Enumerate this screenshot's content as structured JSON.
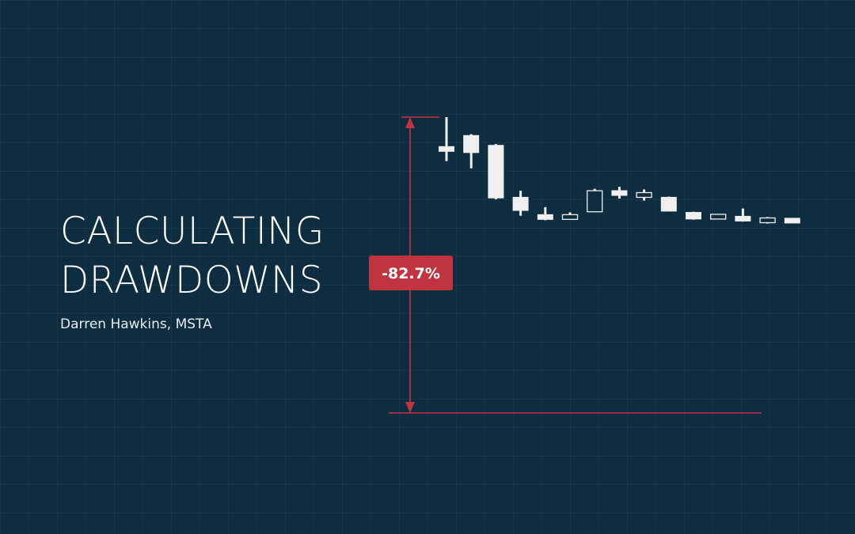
{
  "title": {
    "line1": "CALCULATING",
    "line2": "DRAWDOWNS"
  },
  "author": "Darren Hawkins, MSTA",
  "colors": {
    "background": "#0e2d40",
    "grid": "#1d3d50",
    "candle_fill": "#efefef",
    "candle_outline": "#efefef",
    "drawdown": "#c0343f",
    "badge_text": "#ffffff"
  },
  "chart_data": {
    "type": "candlestick",
    "annotations": [
      {
        "type": "drawdown",
        "label": "-82.7%",
        "from_candle": 0,
        "to_level": 25
      }
    ],
    "candles": [
      {
        "open": 427,
        "high": 475,
        "low": 408,
        "close": 426
      },
      {
        "open": 447,
        "high": 449,
        "low": 397,
        "close": 421
      },
      {
        "open": 432,
        "high": 434,
        "low": 350,
        "close": 352
      },
      {
        "open": 353,
        "high": 363,
        "low": 325,
        "close": 333
      },
      {
        "open": 325,
        "high": 338,
        "low": 318,
        "close": 321
      },
      {
        "open": 321,
        "high": 330,
        "low": 321,
        "close": 325
      },
      {
        "open": 331,
        "high": 366,
        "low": 331,
        "close": 363
      },
      {
        "open": 363,
        "high": 369,
        "low": 351,
        "close": 356
      },
      {
        "open": 355,
        "high": 365,
        "low": 348,
        "close": 358
      },
      {
        "open": 353,
        "high": 354,
        "low": 332,
        "close": 332
      },
      {
        "open": 330,
        "high": 331,
        "low": 319,
        "close": 320
      },
      {
        "open": 323,
        "high": 325,
        "low": 323,
        "close": 324
      },
      {
        "open": 324,
        "high": 336,
        "low": 316,
        "close": 317
      },
      {
        "open": 317,
        "high": 323,
        "low": 313,
        "close": 319
      },
      {
        "open": 318,
        "high": 320,
        "low": 315,
        "close": 317
      }
    ]
  }
}
